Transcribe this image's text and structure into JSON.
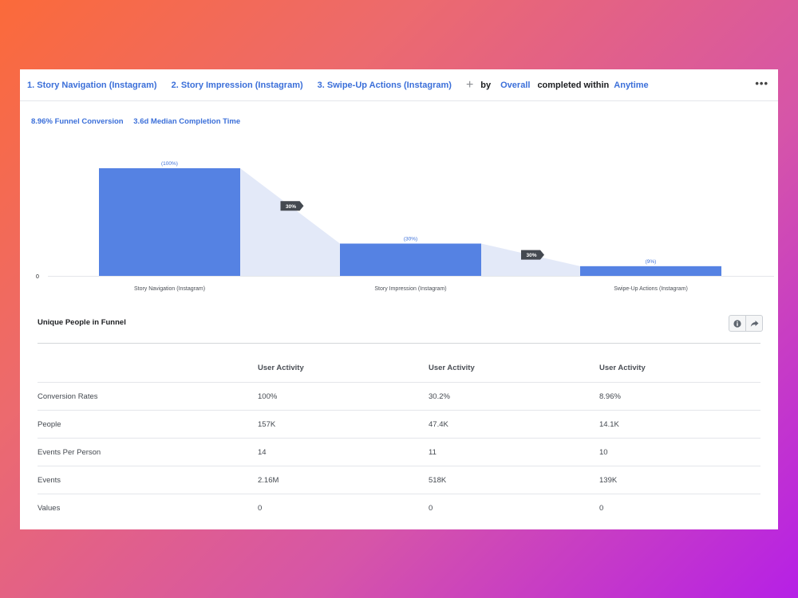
{
  "toolbar": {
    "steps": [
      "1. Story Navigation (Instagram)",
      "2. Story Impression (Instagram)",
      "3. Swipe-Up Actions (Instagram)"
    ],
    "plus": "+",
    "by": "by",
    "breakdown": "Overall",
    "completed_within": "completed within",
    "window": "Anytime",
    "more": "•••"
  },
  "summary": {
    "conversion": "8.96% Funnel Conversion",
    "median_time": "3.6d Median Completion Time"
  },
  "chart_data": {
    "type": "bar",
    "categories": [
      "Story Navigation (Instagram)",
      "Story Impression (Instagram)",
      "Swipe-Up Actions (Instagram)"
    ],
    "values": [
      100,
      30,
      9
    ],
    "bar_labels": [
      "(100%)",
      "(30%)",
      "(9%)"
    ],
    "step_conversions": [
      "30%",
      "30%"
    ],
    "y_tick": "0",
    "ylim": [
      0,
      100
    ],
    "colors": {
      "bar": "#5582e3",
      "flow": "#e3e9f8",
      "tag": "#444950"
    }
  },
  "section": {
    "title": "Unique People in Funnel"
  },
  "table": {
    "headers": [
      "",
      "User Activity",
      "User Activity",
      "User Activity"
    ],
    "rows": [
      [
        "Conversion Rates",
        "100%",
        "30.2%",
        "8.96%"
      ],
      [
        "People",
        "157K",
        "47.4K",
        "14.1K"
      ],
      [
        "Events Per Person",
        "14",
        "11",
        "10"
      ],
      [
        "Events",
        "2.16M",
        "518K",
        "139K"
      ],
      [
        "Values",
        "0",
        "0",
        "0"
      ]
    ]
  },
  "icons": {
    "info": "info-icon",
    "share": "share-icon"
  }
}
